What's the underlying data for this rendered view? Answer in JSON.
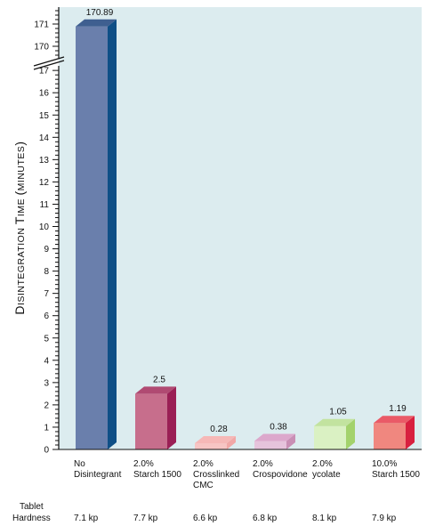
{
  "chart_data": {
    "type": "bar",
    "title": "",
    "ylabel_parts": [
      {
        "text": "D",
        "small": false
      },
      {
        "text": "ISINTEGRATION ",
        "small": true
      },
      {
        "text": "T",
        "small": false
      },
      {
        "text": "IME ",
        "small": true
      },
      {
        "text": "(",
        "small": false
      },
      {
        "text": "MINUTES",
        "small": true
      },
      {
        "text": ")",
        "small": false
      }
    ],
    "categories": [
      [
        "No",
        "Disintegrant"
      ],
      [
        "2.0%",
        "Starch 1500"
      ],
      [
        "2.0%",
        "Crosslinked",
        "CMC"
      ],
      [
        "2.0%",
        "Crospovidone"
      ],
      [
        "2.0%",
        "ycolate"
      ],
      [
        "10.0%",
        "Starch 1500"
      ]
    ],
    "values": [
      170.89,
      2.5,
      0.28,
      0.38,
      1.05,
      1.19
    ],
    "value_labels": [
      "170.89",
      "2.5",
      "0.28",
      "0.38",
      "1.05",
      "1.19"
    ],
    "colors": [
      {
        "front": "#6a7fac",
        "side": "#0f4f86",
        "top": "#3f5f90"
      },
      {
        "front": "#c76e8c",
        "side": "#9a1f55",
        "top": "#b04a72"
      },
      {
        "front": "#f7c5c4",
        "side": "#f1a7a6",
        "top": "#f6b8b7"
      },
      {
        "front": "#e6c3dc",
        "side": "#c98fb5",
        "top": "#dca8cc"
      },
      {
        "front": "#daf1c3",
        "side": "#a3d26c",
        "top": "#c2e39f"
      },
      {
        "front": "#f0877f",
        "side": "#d8203f",
        "top": "#ea5a67"
      }
    ],
    "ylim_lower": [
      0,
      17
    ],
    "ylim_upper": [
      170,
      171
    ],
    "yticks_lower": [
      "0",
      "1",
      "2",
      "3",
      "4",
      "5",
      "6",
      "7",
      "8",
      "9",
      "10",
      "11",
      "12",
      "13",
      "14",
      "15",
      "16",
      "17"
    ],
    "yticks_upper": [
      "170",
      "171"
    ],
    "axis_break": true,
    "plot_background": "#dcecef",
    "grid": false,
    "legend": "none"
  },
  "hardness": {
    "label_lines": [
      "Tablet",
      "Hardness"
    ],
    "values": [
      "7.1 kp",
      "7.7 kp",
      "6.6 kp",
      "6.8 kp",
      "8.1 kp",
      "7.9 kp"
    ]
  }
}
